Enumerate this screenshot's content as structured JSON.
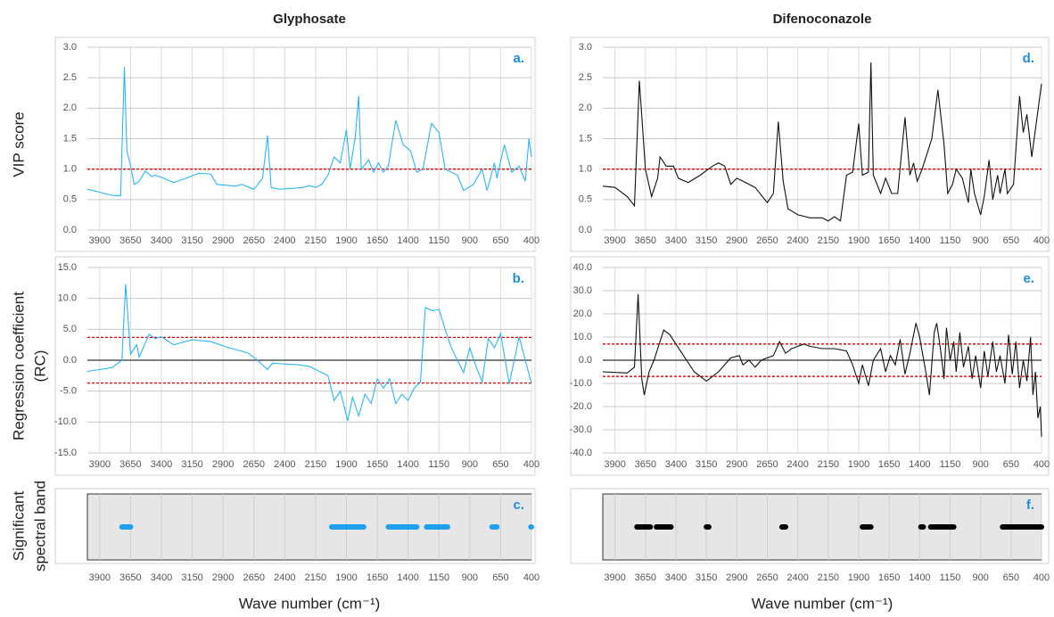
{
  "chart_data": [
    {
      "type": "line",
      "title": "Glyphosate",
      "ylabel": [
        "VIP score"
      ],
      "annotation": "a.",
      "color": "#29b6f6",
      "x": [
        4000,
        3900,
        3800,
        3730,
        3700,
        3680,
        3650,
        3620,
        3580,
        3530,
        3480,
        3450,
        3380,
        3300,
        3200,
        3100,
        3000,
        2950,
        2850,
        2800,
        2750,
        2650,
        2580,
        2540,
        2510,
        2450,
        2350,
        2250,
        2200,
        2150,
        2100,
        2050,
        2000,
        1950,
        1900,
        1870,
        1830,
        1800,
        1780,
        1720,
        1680,
        1640,
        1600,
        1560,
        1500,
        1440,
        1380,
        1330,
        1280,
        1210,
        1150,
        1100,
        1000,
        950,
        870,
        800,
        760,
        700,
        680,
        620,
        560,
        500,
        450,
        420,
        400
      ],
      "values": [
        0.67,
        0.62,
        0.57,
        0.56,
        2.68,
        1.3,
        1.05,
        0.75,
        0.8,
        0.97,
        0.88,
        0.9,
        0.85,
        0.78,
        0.85,
        0.93,
        0.92,
        0.75,
        0.73,
        0.72,
        0.75,
        0.67,
        0.85,
        1.55,
        0.7,
        0.67,
        0.68,
        0.7,
        0.73,
        0.7,
        0.75,
        0.9,
        1.2,
        1.1,
        1.65,
        1.0,
        1.5,
        2.2,
        1.0,
        1.15,
        0.95,
        1.1,
        0.95,
        1.05,
        1.8,
        1.4,
        1.3,
        0.95,
        1.0,
        1.75,
        1.6,
        1.0,
        0.9,
        0.65,
        0.75,
        1.0,
        0.65,
        1.1,
        0.85,
        1.4,
        0.95,
        1.05,
        0.8,
        1.5,
        1.2
      ],
      "thresholds": [
        1
      ],
      "threshold_color": "#e00000",
      "xlim": [
        4000,
        400
      ],
      "xticks": [
        3900,
        3650,
        3400,
        3150,
        2900,
        2650,
        2400,
        2150,
        1900,
        1650,
        1400,
        1150,
        900,
        650,
        400
      ],
      "ylim": [
        0,
        3
      ],
      "yticks": [
        {
          "value": 0,
          "label": "0.0"
        },
        0.5,
        {
          "value": 1,
          "label": "1.0"
        },
        1.5,
        {
          "value": 2,
          "label": "2.0"
        },
        2.5,
        {
          "value": 3,
          "label": "3.0"
        }
      ],
      "grid": true
    },
    {
      "type": "line",
      "ylabel": [
        "Regression coefficient",
        "(RC)"
      ],
      "annotation": "b.",
      "color": "#29b6f6",
      "x": [
        4000,
        3800,
        3720,
        3690,
        3650,
        3600,
        3580,
        3500,
        3450,
        3400,
        3300,
        3150,
        3000,
        2850,
        2700,
        2620,
        2540,
        2500,
        2300,
        2200,
        2100,
        2050,
        2000,
        1950,
        1890,
        1850,
        1800,
        1750,
        1700,
        1650,
        1600,
        1550,
        1500,
        1450,
        1400,
        1350,
        1300,
        1260,
        1200,
        1150,
        1100,
        1050,
        1000,
        950,
        900,
        850,
        800,
        750,
        700,
        650,
        580,
        500,
        450,
        400
      ],
      "values": [
        -1.8,
        -1.2,
        0,
        12.3,
        1,
        2.5,
        0.5,
        4.2,
        3.5,
        3.8,
        2.5,
        3.3,
        3.0,
        2.0,
        1.2,
        0,
        -1.5,
        -0.5,
        -0.7,
        -1.0,
        -2.0,
        -2.5,
        -6.5,
        -5.0,
        -9.8,
        -6,
        -9,
        -5.5,
        -7,
        -3,
        -4.5,
        -3,
        -7,
        -5.5,
        -6.5,
        -4.5,
        -3.5,
        8.5,
        8.0,
        8.2,
        5,
        2,
        0,
        -2,
        2,
        -1,
        -3.5,
        3.5,
        2.0,
        4.3,
        -3.8,
        3.8,
        0,
        -3.8
      ],
      "thresholds": [
        3.7,
        -3.7
      ],
      "threshold_color": "#e00000",
      "xlim": [
        4000,
        400
      ],
      "xticks": [
        3900,
        3650,
        3400,
        3150,
        2900,
        2650,
        2400,
        2150,
        1900,
        1650,
        1400,
        1150,
        900,
        650,
        400
      ],
      "ylim": [
        -15,
        15
      ],
      "yticks": [
        {
          "value": -15,
          "label": "-15.0"
        },
        {
          "value": -10,
          "label": "-10.0"
        },
        {
          "value": -5,
          "label": "-5.0"
        },
        {
          "value": 0,
          "label": "0.0"
        },
        {
          "value": 5,
          "label": "5.0"
        },
        {
          "value": 10,
          "label": "10.0"
        },
        {
          "value": 15,
          "label": "15.0"
        }
      ],
      "grid": true
    },
    {
      "type": "band",
      "ylabel": [
        "Significant",
        "spectral band"
      ],
      "xlabel": "Wave number (cm⁻¹)",
      "annotation": "c.",
      "color": "#1ea0ee",
      "bands": [
        [
          3720,
          3650
        ],
        [
          2020,
          1760
        ],
        [
          1560,
          1330
        ],
        [
          1250,
          1080
        ],
        [
          720,
          680
        ],
        [
          405,
          400
        ]
      ],
      "xlim": [
        4000,
        400
      ],
      "xticks": [
        3900,
        3650,
        3400,
        3150,
        2900,
        2650,
        2400,
        2150,
        1900,
        1650,
        1400,
        1150,
        900,
        650,
        400
      ],
      "grid": true
    },
    {
      "type": "line",
      "title": "Difenoconazole",
      "annotation": "d.",
      "color": "#111111",
      "x": [
        4000,
        3900,
        3800,
        3740,
        3700,
        3650,
        3600,
        3550,
        3530,
        3480,
        3420,
        3380,
        3300,
        3200,
        3100,
        3050,
        3000,
        2950,
        2900,
        2850,
        2750,
        2650,
        2600,
        2560,
        2520,
        2480,
        2400,
        2300,
        2200,
        2150,
        2100,
        2050,
        2000,
        1950,
        1900,
        1870,
        1820,
        1800,
        1780,
        1720,
        1680,
        1630,
        1580,
        1520,
        1480,
        1450,
        1420,
        1380,
        1300,
        1250,
        1200,
        1170,
        1130,
        1100,
        1050,
        1000,
        980,
        950,
        900,
        870,
        830,
        800,
        760,
        740,
        700,
        680,
        630,
        580,
        550,
        520,
        480,
        440,
        400
      ],
      "values": [
        0.72,
        0.7,
        0.55,
        0.4,
        2.45,
        1.0,
        0.55,
        0.85,
        1.2,
        1.05,
        1.05,
        0.85,
        0.78,
        0.9,
        1.05,
        1.1,
        1.05,
        0.75,
        0.85,
        0.8,
        0.7,
        0.45,
        0.6,
        1.78,
        0.8,
        0.35,
        0.25,
        0.2,
        0.2,
        0.15,
        0.22,
        0.15,
        0.9,
        0.95,
        1.75,
        0.9,
        0.95,
        2.75,
        0.9,
        0.6,
        0.85,
        0.6,
        0.6,
        1.85,
        0.9,
        1.1,
        0.8,
        1.0,
        1.5,
        2.3,
        1.4,
        0.6,
        0.75,
        1.0,
        0.85,
        0.45,
        1.0,
        0.6,
        0.25,
        0.55,
        1.15,
        0.5,
        0.9,
        0.6,
        1.0,
        0.6,
        0.75,
        2.2,
        1.6,
        1.9,
        1.2,
        1.8,
        2.4
      ],
      "thresholds": [
        1
      ],
      "threshold_color": "#e00000",
      "xlim": [
        4000,
        400
      ],
      "xticks": [
        3900,
        3650,
        3400,
        3150,
        2900,
        2650,
        2400,
        2150,
        1900,
        1650,
        1400,
        1150,
        900,
        650,
        400
      ],
      "ylim": [
        0,
        3
      ],
      "yticks": [
        {
          "value": 0,
          "label": "0.0"
        },
        0.5,
        {
          "value": 1,
          "label": "1.0"
        },
        1.5,
        {
          "value": 2,
          "label": "2.0"
        },
        2.5,
        {
          "value": 3,
          "label": "3.0"
        }
      ],
      "grid": true
    },
    {
      "type": "line",
      "annotation": "e.",
      "color": "#111111",
      "x": [
        4000,
        3800,
        3740,
        3710,
        3680,
        3660,
        3620,
        3580,
        3500,
        3450,
        3350,
        3250,
        3150,
        3050,
        2950,
        2880,
        2850,
        2800,
        2750,
        2700,
        2600,
        2550,
        2500,
        2450,
        2350,
        2300,
        2200,
        2100,
        2000,
        1950,
        1900,
        1870,
        1820,
        1780,
        1720,
        1680,
        1640,
        1600,
        1560,
        1520,
        1480,
        1430,
        1400,
        1350,
        1320,
        1280,
        1260,
        1230,
        1200,
        1180,
        1150,
        1120,
        1100,
        1070,
        1040,
        1000,
        970,
        940,
        900,
        870,
        840,
        800,
        770,
        740,
        700,
        670,
        640,
        610,
        580,
        550,
        520,
        490,
        470,
        450,
        430,
        410,
        400
      ],
      "values": [
        -5,
        -5.5,
        -3,
        28.5,
        -8,
        -15,
        -5,
        0,
        13,
        11,
        3,
        -5,
        -9,
        -5,
        1,
        2,
        -2,
        0,
        -3,
        0,
        2,
        8,
        3,
        5,
        7,
        6,
        5,
        5,
        4,
        -2,
        -10,
        -2,
        -11,
        0,
        5,
        -5,
        2,
        -2,
        9,
        -6,
        3,
        16,
        10,
        -5,
        -15,
        12,
        16,
        5,
        -8,
        14,
        0,
        8,
        -5,
        12,
        -3,
        6,
        -8,
        2,
        -12,
        4,
        -7,
        8,
        -5,
        2,
        -10,
        11,
        -6,
        8,
        -12,
        0,
        -9,
        10,
        -15,
        -5,
        -25,
        -20,
        -33
      ],
      "thresholds": [
        7,
        -7
      ],
      "threshold_color": "#e00000",
      "xlim": [
        4000,
        400
      ],
      "xticks": [
        3900,
        3650,
        3400,
        3150,
        2900,
        2650,
        2400,
        2150,
        1900,
        1650,
        1400,
        1150,
        900,
        650,
        400
      ],
      "ylim": [
        -40,
        40
      ],
      "yticks": [
        {
          "value": -40,
          "label": "-40.0"
        },
        {
          "value": -30,
          "label": "-30.0"
        },
        {
          "value": -20,
          "label": "-20.0"
        },
        {
          "value": -10,
          "label": "-10.0"
        },
        {
          "value": 0,
          "label": "0.0"
        },
        {
          "value": 10,
          "label": "10.0"
        },
        {
          "value": 20,
          "label": "20.0"
        },
        {
          "value": 30,
          "label": "30.0"
        },
        {
          "value": 40,
          "label": "40.0"
        }
      ],
      "grid": true
    },
    {
      "type": "band",
      "xlabel": "Wave number (cm⁻¹)",
      "annotation": "f.",
      "color": "#000000",
      "bands": [
        [
          3720,
          3610
        ],
        [
          3560,
          3440
        ],
        [
          3150,
          3130
        ],
        [
          2530,
          2500
        ],
        [
          1870,
          1800
        ],
        [
          1390,
          1370
        ],
        [
          1310,
          1120
        ],
        [
          720,
          400
        ]
      ],
      "xlim": [
        4000,
        400
      ],
      "xticks": [
        3900,
        3650,
        3400,
        3150,
        2900,
        2650,
        2400,
        2150,
        1900,
        1650,
        1400,
        1150,
        900,
        650,
        400
      ],
      "grid": true
    }
  ]
}
